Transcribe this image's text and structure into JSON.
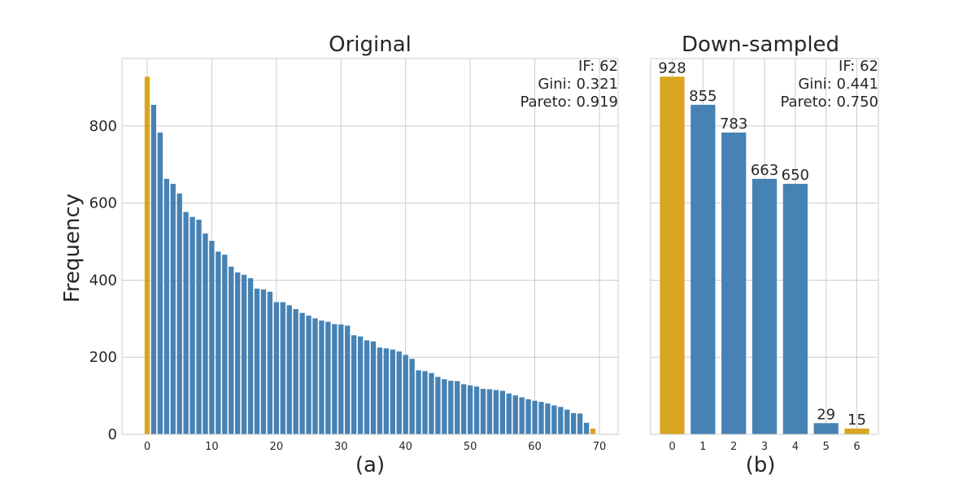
{
  "colors": {
    "bar": "#4682b4",
    "highlight": "#daa520"
  },
  "figure": {
    "ylabel": "Frequency"
  },
  "chart_data": [
    {
      "type": "bar",
      "title": "Original",
      "xlabel": "(a)",
      "ylabel": "Frequency",
      "ylim": [
        0,
        975
      ],
      "xlim": [
        -3.9,
        72.9
      ],
      "yticks": [
        0,
        200,
        400,
        600,
        800
      ],
      "xticks": [
        0,
        10,
        20,
        30,
        40,
        50,
        60,
        70
      ],
      "grid": true,
      "highlight_indices": [
        0,
        69
      ],
      "stats": [
        "IF: 62",
        "Gini: 0.321",
        "Pareto: 0.919"
      ],
      "x": [
        0,
        1,
        2,
        3,
        4,
        5,
        6,
        7,
        8,
        9,
        10,
        11,
        12,
        13,
        14,
        15,
        16,
        17,
        18,
        19,
        20,
        21,
        22,
        23,
        24,
        25,
        26,
        27,
        28,
        29,
        30,
        31,
        32,
        33,
        34,
        35,
        36,
        37,
        38,
        39,
        40,
        41,
        42,
        43,
        44,
        45,
        46,
        47,
        48,
        49,
        50,
        51,
        52,
        53,
        54,
        55,
        56,
        57,
        58,
        59,
        60,
        61,
        62,
        63,
        64,
        65,
        66,
        67,
        68,
        69
      ],
      "values": [
        928,
        855,
        783,
        663,
        650,
        625,
        577,
        564,
        557,
        521,
        502,
        474,
        466,
        435,
        420,
        414,
        405,
        378,
        376,
        370,
        343,
        343,
        335,
        325,
        315,
        308,
        301,
        295,
        292,
        286,
        285,
        282,
        257,
        254,
        244,
        241,
        225,
        223,
        220,
        215,
        206,
        196,
        166,
        164,
        159,
        149,
        143,
        139,
        138,
        130,
        127,
        124,
        118,
        117,
        115,
        113,
        106,
        101,
        96,
        91,
        87,
        84,
        80,
        75,
        71,
        64,
        55,
        54,
        30,
        15
      ]
    },
    {
      "type": "bar",
      "title": "Down-sampled",
      "xlabel": "(b)",
      "ylim": [
        0,
        975
      ],
      "xlim": [
        -0.7,
        6.7
      ],
      "yticks": [
        0,
        200,
        400,
        600,
        800
      ],
      "xticks": [
        0,
        1,
        2,
        3,
        4,
        5,
        6
      ],
      "grid": true,
      "highlight_indices": [
        0,
        6
      ],
      "stats": [
        "IF: 62",
        "Gini: 0.441",
        "Pareto: 0.750"
      ],
      "x": [
        0,
        1,
        2,
        3,
        4,
        5,
        6
      ],
      "values": [
        928,
        855,
        783,
        663,
        650,
        29,
        15
      ],
      "data_labels": [
        "928",
        "855",
        "783",
        "663",
        "650",
        "29",
        "15"
      ]
    }
  ]
}
